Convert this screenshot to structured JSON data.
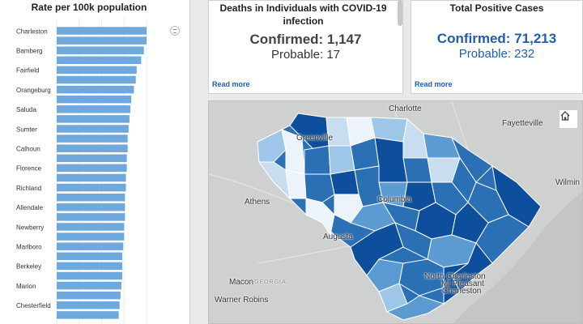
{
  "rate_panel": {
    "title": "Rate per 100k population"
  },
  "chart_data": {
    "type": "bar",
    "orientation": "horizontal",
    "title": "Rate per 100k population",
    "categories": [
      "Charleston",
      "",
      "Bamberg",
      "",
      "Fairfield",
      "",
      "Orangeburg",
      "",
      "Saluda",
      "",
      "Sumter",
      "",
      "Calhoun",
      "",
      "Florence",
      "",
      "Richland",
      "",
      "Allendale",
      "",
      "Newberry",
      "",
      "Marlboro",
      "",
      "Berkeley",
      "",
      "Marion",
      "",
      "Chesterfield",
      ""
    ],
    "values": [
      100,
      100,
      97,
      94,
      89,
      88,
      86,
      83,
      82,
      81,
      80,
      79,
      79,
      78,
      78,
      77,
      77,
      76,
      76,
      76,
      75,
      75,
      74,
      73,
      73,
      73,
      72,
      71,
      70,
      69
    ],
    "xlim": [
      0,
      100
    ],
    "color": "#6fa8dc"
  },
  "deaths_card": {
    "title": "Deaths in Individuals with COVID-19 infection",
    "confirmed": "Confirmed: 1,147",
    "probable": "Probable: 17",
    "read_more": "Read more"
  },
  "cases_card": {
    "title": "Total Positive Cases",
    "confirmed": "Confirmed: 71,213",
    "probable": "Probable: 232",
    "read_more": "Read more"
  },
  "map": {
    "cities": {
      "charlotte": "Charlotte",
      "fayetteville": "Fayetteville",
      "greenville": "Greenville",
      "athens": "Athens",
      "columbia": "Columbia",
      "augusta": "Augusta",
      "wilmington": "Wilmin",
      "macon": "Macon",
      "georgia": "GEORGIA",
      "warner_robins": "Warner Robins",
      "north_charleston": "North Charleston",
      "mt_pleasant": "Mt Pleasant",
      "charleston": "Charleston"
    },
    "home_icon": "home-icon",
    "colors": {
      "darkest": "#0d4f9c",
      "dark": "#2b6fb5",
      "medium": "#5c9bd1",
      "light": "#9ec6e8",
      "lighter": "#c8ddf0",
      "lightest": "#edf3fb"
    }
  }
}
